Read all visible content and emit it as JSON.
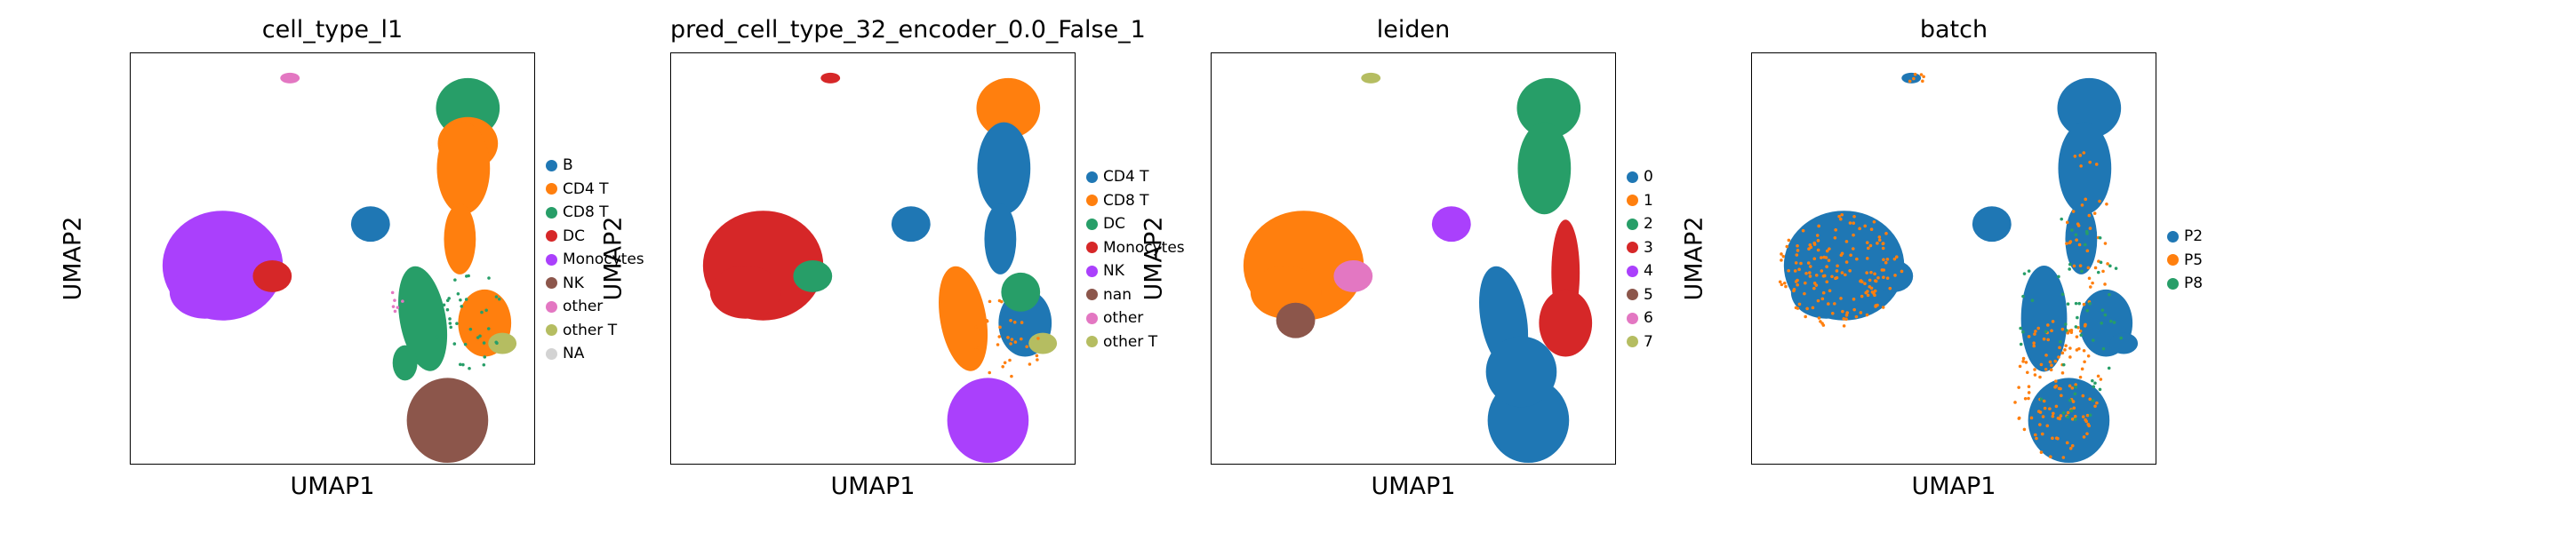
{
  "panels": [
    {
      "id": "cell_type_l1",
      "title": "cell_type_l1",
      "xlabel": "UMAP1",
      "ylabel": "UMAP2",
      "legend": [
        {
          "label": "B",
          "color": "#1f77b4"
        },
        {
          "label": "CD4 T",
          "color": "#ff7f0e"
        },
        {
          "label": "CD8 T",
          "color": "#279e68"
        },
        {
          "label": "DC",
          "color": "#d62728"
        },
        {
          "label": "Monocytes",
          "color": "#aa40fc"
        },
        {
          "label": "NK",
          "color": "#8c564b"
        },
        {
          "label": "other",
          "color": "#e377c2"
        },
        {
          "label": "other T",
          "color": "#b5bd61"
        },
        {
          "label": "NA",
          "color": "#d3d3d3"
        }
      ]
    },
    {
      "id": "pred_cell_type",
      "title": "pred_cell_type_32_encoder_0.0_False_1",
      "xlabel": "UMAP1",
      "ylabel": "UMAP2",
      "legend": [
        {
          "label": "CD4 T",
          "color": "#1f77b4"
        },
        {
          "label": "CD8 T",
          "color": "#ff7f0e"
        },
        {
          "label": "DC",
          "color": "#279e68"
        },
        {
          "label": "Monocytes",
          "color": "#d62728"
        },
        {
          "label": "NK",
          "color": "#aa40fc"
        },
        {
          "label": "nan",
          "color": "#8c564b"
        },
        {
          "label": "other",
          "color": "#e377c2"
        },
        {
          "label": "other T",
          "color": "#b5bd61"
        }
      ]
    },
    {
      "id": "leiden",
      "title": "leiden",
      "xlabel": "UMAP1",
      "ylabel": "UMAP2",
      "legend": [
        {
          "label": "0",
          "color": "#1f77b4"
        },
        {
          "label": "1",
          "color": "#ff7f0e"
        },
        {
          "label": "2",
          "color": "#279e68"
        },
        {
          "label": "3",
          "color": "#d62728"
        },
        {
          "label": "4",
          "color": "#aa40fc"
        },
        {
          "label": "5",
          "color": "#8c564b"
        },
        {
          "label": "6",
          "color": "#e377c2"
        },
        {
          "label": "7",
          "color": "#b5bd61"
        }
      ]
    },
    {
      "id": "batch",
      "title": "batch",
      "xlabel": "UMAP1",
      "ylabel": "UMAP2",
      "legend": [
        {
          "label": "P2",
          "color": "#1f77b4"
        },
        {
          "label": "P5",
          "color": "#ff7f0e"
        },
        {
          "label": "P8",
          "color": "#279e68"
        }
      ]
    }
  ],
  "chart_data": [
    {
      "type": "scatter",
      "title": "cell_type_l1",
      "xlabel": "UMAP1",
      "ylabel": "UMAP2",
      "series": [
        {
          "name": "B"
        },
        {
          "name": "CD4 T"
        },
        {
          "name": "CD8 T"
        },
        {
          "name": "DC"
        },
        {
          "name": "Monocytes"
        },
        {
          "name": "NK"
        },
        {
          "name": "other"
        },
        {
          "name": "other T"
        },
        {
          "name": "NA"
        }
      ]
    },
    {
      "type": "scatter",
      "title": "pred_cell_type_32_encoder_0.0_False_1",
      "xlabel": "UMAP1",
      "ylabel": "UMAP2",
      "series": [
        {
          "name": "CD4 T"
        },
        {
          "name": "CD8 T"
        },
        {
          "name": "DC"
        },
        {
          "name": "Monocytes"
        },
        {
          "name": "NK"
        },
        {
          "name": "nan"
        },
        {
          "name": "other"
        },
        {
          "name": "other T"
        }
      ]
    },
    {
      "type": "scatter",
      "title": "leiden",
      "xlabel": "UMAP1",
      "ylabel": "UMAP2",
      "series": [
        {
          "name": "0"
        },
        {
          "name": "1"
        },
        {
          "name": "2"
        },
        {
          "name": "3"
        },
        {
          "name": "4"
        },
        {
          "name": "5"
        },
        {
          "name": "6"
        },
        {
          "name": "7"
        }
      ]
    },
    {
      "type": "scatter",
      "title": "batch",
      "xlabel": "UMAP1",
      "ylabel": "UMAP2",
      "series": [
        {
          "name": "P2"
        },
        {
          "name": "P5"
        },
        {
          "name": "P8"
        }
      ]
    }
  ]
}
